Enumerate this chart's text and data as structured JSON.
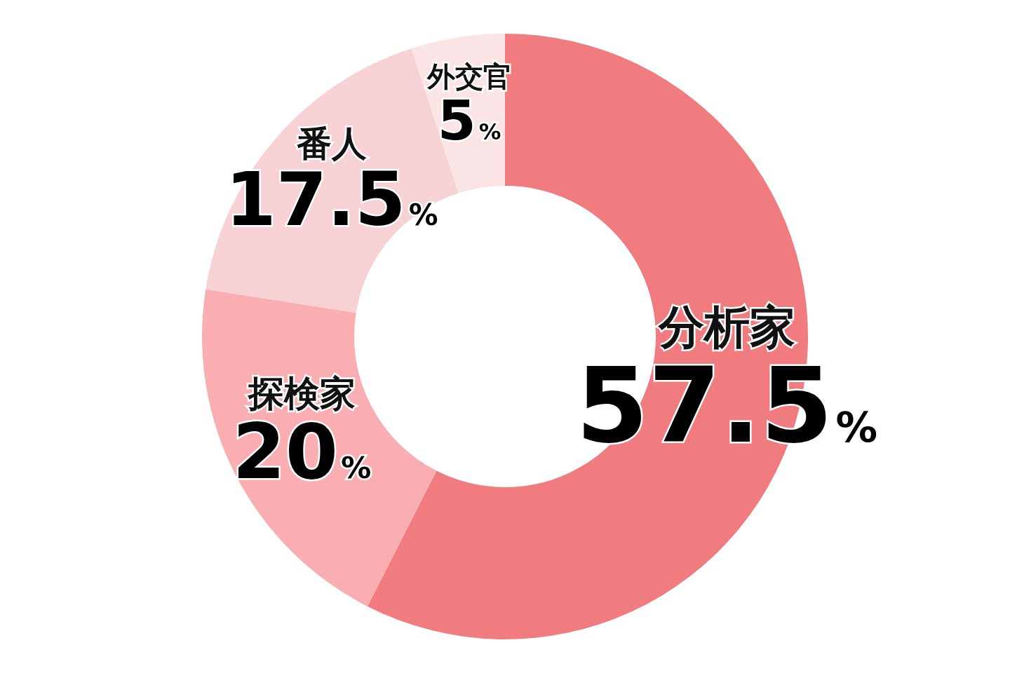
{
  "chart_data": {
    "type": "donut",
    "categories": [
      "分析家",
      "探検家",
      "番人",
      "外交官"
    ],
    "values": [
      57.5,
      20,
      17.5,
      5
    ],
    "colors": [
      "#f07c80",
      "#fbaeb1",
      "#f7d2d4",
      "#fae4e5"
    ],
    "value_labels": [
      "57.5%",
      "20%",
      "17.5%",
      "5%"
    ]
  }
}
